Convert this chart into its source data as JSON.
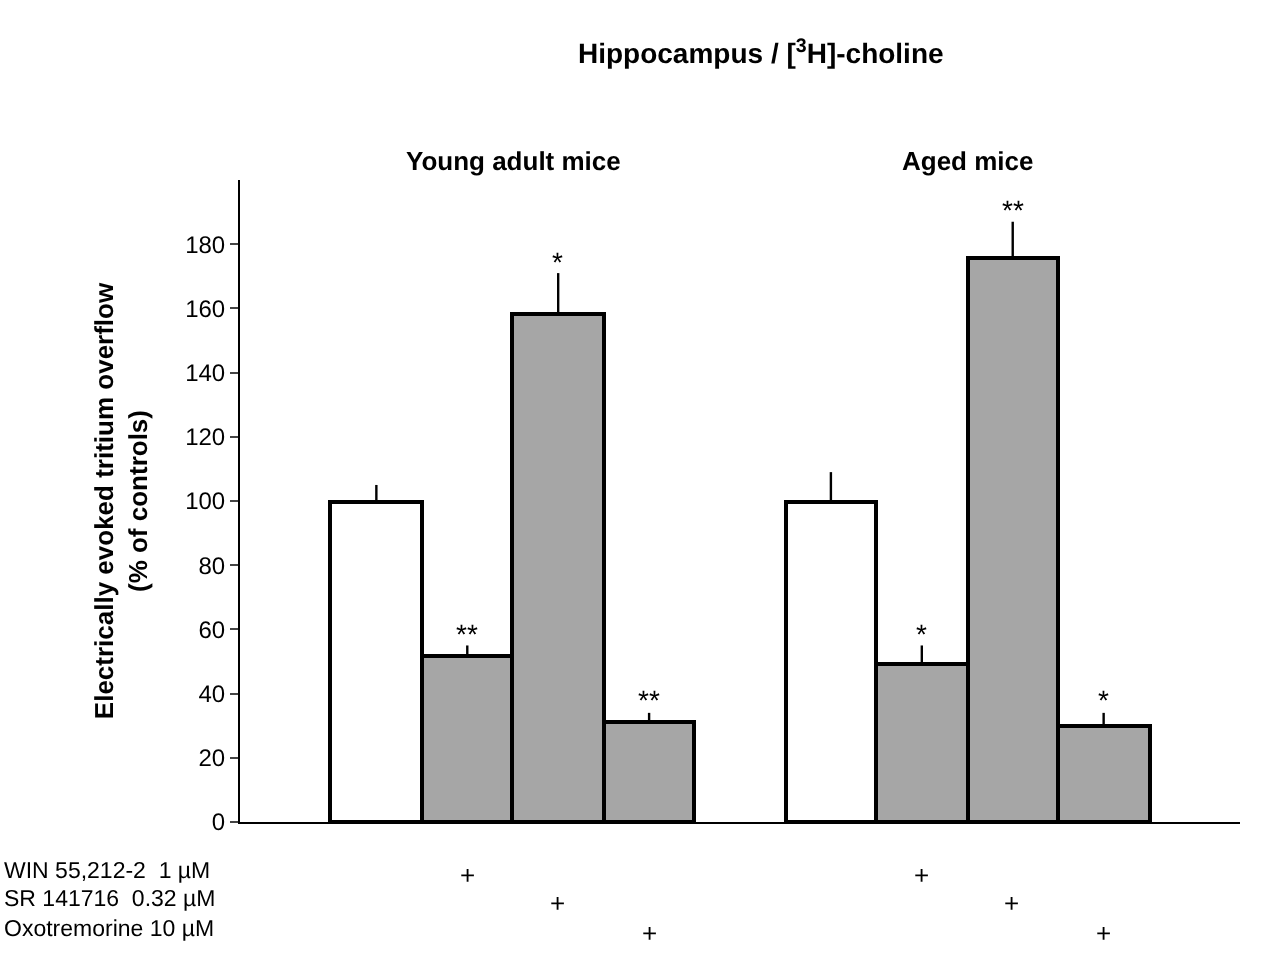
{
  "chart_data": {
    "type": "bar",
    "title": "Hippocampus / [$^{3}$H]-choline",
    "ylabel": "Electrically evoked tritium overflow\n(% of controls)",
    "categories": [
      null,
      null,
      null,
      null,
      null,
      null,
      null,
      null,
      null,
      null,
      null
    ],
    "values": [
      null,
      100,
      52,
      158,
      31,
      null,
      100,
      49,
      176,
      30,
      null
    ],
    "errors": [
      null,
      5,
      3,
      13,
      3,
      null,
      9,
      6,
      11,
      4,
      null
    ],
    "value_labels": [
      null,
      null,
      "**",
      "*",
      "**",
      null,
      null,
      "*",
      "**",
      "*",
      null
    ],
    "colors": [
      null,
      "#ffffff",
      "#a6a6a6",
      "#a6a6a6",
      "#a6a6a6",
      null,
      "#ffffff",
      "#a6a6a6",
      "#a6a6a6",
      "#a6a6a6",
      null
    ],
    "ylim": [
      0,
      200
    ],
    "yticks": [
      0,
      20,
      40,
      60,
      80,
      100,
      120,
      140,
      160,
      180
    ],
    "annotations": [
      "Young adult mice",
      "Aged mice",
      "WIN 55,212-2  1 µM",
      "SR 141716  0.32 µM",
      "Oxotremorine 10 µM",
      "+",
      "+",
      "+",
      "+",
      "+",
      "+"
    ]
  }
}
